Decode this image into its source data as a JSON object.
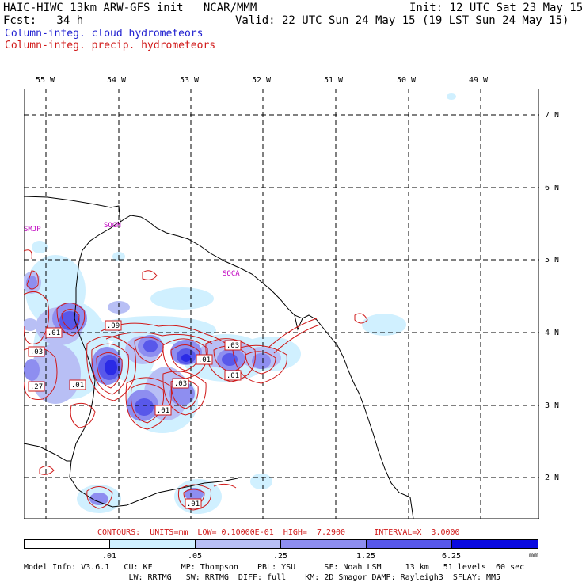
{
  "header": {
    "left1": "HAIC-HIWC 13km ARW-GFS init   NCAR/MMM",
    "left2": "Fcst:   34 h",
    "init": "Init: 12 UTC Sat 23 May 15",
    "valid": "Valid: 22 UTC Sun 24 May 15 (19 LST Sun 24 May 15)",
    "legend_cloud": "Column-integ. cloud hydrometeors",
    "legend_precip": "Column-integ. precip. hydrometeors"
  },
  "colors": {
    "cloud": "#2020d0",
    "precip": "#d01818",
    "station": "#c000c0",
    "shade": [
      "#ffffff",
      "#d0f0ff",
      "#b8bff5",
      "#8e8ef0",
      "#5858ea",
      "#2a2ae6",
      "#0a0ae0"
    ]
  },
  "axes": {
    "lon_labels": [
      "55 W",
      "54 W",
      "53 W",
      "52 W",
      "51 W",
      "50 W",
      "49 W"
    ],
    "lat_labels": [
      "7 N",
      "6 N",
      "5 N",
      "4 N",
      "3 N",
      "2 N"
    ]
  },
  "stations": [
    "SMJP",
    "SOGM",
    "SOCA"
  ],
  "contour_labels": [
    ".01",
    ".03",
    ".27",
    ".01",
    ".09",
    ".03",
    ".01",
    ".01",
    ".03",
    ".01",
    ".01"
  ],
  "contour_info": "CONTOURS:  UNITS=mm  LOW= 0.10000E-01  HIGH=  7.2900      INTERVAL=X  3.0000",
  "colorbar": {
    "ticks": [
      ".01",
      ".05",
      ".25",
      "1.25",
      "6.25"
    ],
    "unit": "mm"
  },
  "model_info": {
    "line1": "Model Info: V3.6.1   CU: KF      MP: Thompson    PBL: YSU      SF: Noah LSM     13 km   51 levels  60 sec",
    "line2": "                      LW: RRTMG   SW: RRTMG  DIFF: full    KM: 2D Smagor DAMP: Rayleigh3  SFLAY: MM5"
  }
}
